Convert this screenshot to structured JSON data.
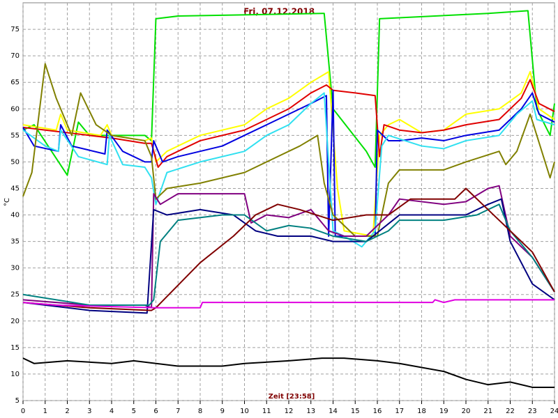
{
  "chart_data": {
    "type": "line",
    "title": "Fri, 07.12.2018",
    "x_label": "Zeit [23:58]",
    "y_label": "°C",
    "xlim": [
      0,
      24
    ],
    "xticks": [
      0,
      1,
      2,
      3,
      4,
      5,
      6,
      7,
      8,
      9,
      10,
      11,
      12,
      13,
      14,
      15,
      16,
      17,
      18,
      19,
      20,
      21,
      22,
      23,
      24
    ],
    "ylim": [
      5,
      80
    ],
    "yticks": [
      5,
      10,
      15,
      20,
      25,
      30,
      35,
      40,
      45,
      50,
      55,
      60,
      65,
      70,
      75
    ],
    "grid": true,
    "series": [
      {
        "color": "#00e000",
        "x": [
          0,
          0.5,
          2.0,
          2.5,
          3,
          5.5,
          5.8,
          6.0,
          7,
          13.5,
          13.6,
          14,
          15.5,
          15.9,
          16.1,
          21,
          22.8,
          23.2,
          23.8,
          24
        ],
        "values": [
          56,
          57,
          47.5,
          57.5,
          55,
          55,
          54,
          77,
          77.5,
          78,
          78,
          60,
          52,
          49,
          77,
          78,
          78.5,
          60,
          55,
          61
        ]
      },
      {
        "color": "#ffff00",
        "x": [
          0,
          1.5,
          1.7,
          2,
          3.5,
          3.8,
          4,
          5.5,
          5.8,
          6.0,
          6.5,
          8,
          10,
          11,
          12,
          13,
          13.8,
          14.2,
          14.5,
          15.8,
          16.1,
          16.5,
          17,
          18,
          19,
          20,
          21.5,
          22.5,
          22.9,
          23.3,
          24
        ],
        "values": [
          57,
          56,
          59,
          56,
          55,
          57,
          55,
          54,
          54.5,
          50,
          52,
          55,
          57,
          60,
          62,
          65,
          67,
          45,
          37,
          36,
          55,
          57,
          58,
          55.5,
          56,
          59,
          60,
          63,
          67,
          60,
          58
        ]
      },
      {
        "color": "#e00000",
        "x": [
          0,
          2,
          4,
          5.5,
          5.8,
          6.1,
          6.5,
          8,
          10,
          11,
          12,
          13,
          13.7,
          14,
          15,
          15.9,
          16.1,
          16.3,
          17,
          18,
          19,
          20,
          21.5,
          22.5,
          22.9,
          23.3,
          24
        ],
        "values": [
          56.5,
          55.5,
          54.5,
          53.5,
          53.5,
          49,
          51,
          54,
          56,
          58,
          60,
          63,
          64.5,
          63.5,
          63,
          62.5,
          51,
          57,
          56,
          55.5,
          56,
          57,
          58,
          62,
          65.5,
          61,
          59.5
        ]
      },
      {
        "color": "#0000e0",
        "x": [
          0,
          0.5,
          1.6,
          1.7,
          2.2,
          3.7,
          3.8,
          4.5,
          5.5,
          5.8,
          5.9,
          6.3,
          7,
          9,
          10,
          11,
          12,
          13,
          13.7,
          13.8,
          14.0,
          14.1,
          15.9,
          16.0,
          16.5,
          17,
          18,
          19,
          20,
          21.5,
          22.5,
          23,
          23.3,
          24
        ],
        "values": [
          56.5,
          53,
          52,
          57,
          53,
          51.5,
          56,
          52,
          50,
          50,
          54,
          50,
          51,
          53,
          55,
          57,
          59,
          61,
          62.5,
          36,
          63.5,
          36,
          36,
          56,
          54,
          54,
          54.5,
          54,
          55,
          56,
          60,
          63,
          59,
          57.5
        ]
      },
      {
        "color": "#30e0f0",
        "x": [
          0,
          1,
          1.6,
          1.7,
          2.5,
          3.8,
          3.9,
          4.5,
          5.5,
          5.8,
          6.0,
          6.5,
          8,
          10,
          11,
          12,
          13,
          13.6,
          14.0,
          14.5,
          15.3,
          15.9,
          16.2,
          16.5,
          18,
          19,
          20,
          21.5,
          22.3,
          23,
          23.2,
          24
        ],
        "values": [
          56,
          53,
          52,
          56,
          51,
          49.5,
          55,
          49.5,
          49,
          47,
          42,
          48,
          50,
          52,
          55,
          57,
          61,
          63,
          37,
          36,
          34,
          37,
          53,
          55,
          53,
          52.5,
          54,
          55,
          59,
          61.5,
          58,
          57
        ]
      },
      {
        "color": "#808000",
        "x": [
          0,
          0.4,
          1.0,
          1.5,
          2.2,
          2.6,
          3.3,
          4,
          5.5,
          5.8,
          6.0,
          6.5,
          8,
          10,
          11,
          12.5,
          13.3,
          13.6,
          14,
          15,
          16,
          16.5,
          17,
          19,
          20,
          21.5,
          21.8,
          22.3,
          22.9,
          23.2,
          23.8,
          24
        ],
        "values": [
          43.5,
          48,
          68.5,
          62,
          55,
          63,
          57,
          55,
          54,
          51,
          43,
          45,
          46,
          48,
          50,
          53,
          55,
          46,
          40,
          36,
          36,
          46,
          48.5,
          48.5,
          50,
          52,
          49.5,
          52,
          59,
          55,
          47,
          50
        ]
      },
      {
        "color": "#800080",
        "x": [
          0,
          3,
          5.5,
          5.8,
          5.9,
          6.2,
          7,
          10,
          10.3,
          11,
          12,
          13,
          13.8,
          14.5,
          15.5,
          16.5,
          17,
          19,
          20,
          21,
          21.5,
          22,
          23,
          24
        ],
        "values": [
          24,
          23,
          23,
          22.5,
          44,
          42,
          44,
          44,
          38.5,
          40,
          39.5,
          41,
          37,
          36,
          36,
          40,
          43,
          42,
          42.5,
          45,
          45.5,
          36,
          32,
          25.5
        ]
      },
      {
        "color": "#000080",
        "x": [
          0,
          3,
          5.6,
          5.9,
          6.5,
          8,
          9.5,
          10.5,
          11.5,
          13,
          14,
          15.5,
          17,
          19,
          20,
          21,
          21.6,
          22,
          23,
          24
        ],
        "values": [
          23.5,
          22,
          21.5,
          41,
          40,
          41,
          40,
          37,
          36,
          36,
          35,
          35,
          40,
          40,
          40,
          42,
          43,
          35,
          27,
          24
        ]
      },
      {
        "color": "#008080",
        "x": [
          0,
          3,
          5.7,
          5.9,
          6.2,
          7,
          9,
          10,
          11,
          12,
          13,
          14,
          15.5,
          16.5,
          17,
          19,
          20.5,
          21.5,
          22,
          23,
          24
        ],
        "values": [
          25,
          23,
          23,
          24,
          35,
          39,
          40,
          40,
          37,
          38,
          37.5,
          36,
          35,
          37,
          39,
          39,
          40,
          42,
          37,
          32,
          25.5
        ]
      },
      {
        "color": "#800000",
        "x": [
          0,
          3,
          5.8,
          6,
          8,
          9.5,
          10.5,
          11.5,
          12.5,
          14,
          15.5,
          16.5,
          17.5,
          19.5,
          20,
          21,
          22.5,
          23,
          24
        ],
        "values": [
          23.5,
          22.5,
          22,
          22.5,
          31,
          36,
          40,
          42,
          41,
          39,
          40,
          40,
          43,
          43,
          45,
          41,
          35,
          33,
          25.5
        ]
      },
      {
        "color": "#e000e0",
        "x": [
          0,
          1.5,
          6,
          8,
          8.1,
          18.5,
          18.6,
          19,
          19.5,
          24
        ],
        "values": [
          23.5,
          23,
          22.5,
          22.5,
          23.5,
          23.5,
          24,
          23.5,
          24,
          24
        ]
      },
      {
        "color": "#000000",
        "x": [
          0,
          0.5,
          2,
          4,
          5,
          7,
          9,
          10,
          12,
          13.5,
          14.5,
          16,
          17,
          19,
          20,
          21,
          22,
          23,
          24
        ],
        "values": [
          13,
          12,
          12.5,
          12,
          12.5,
          11.5,
          11.5,
          12,
          12.5,
          13,
          13,
          12.5,
          12,
          10.5,
          9,
          8,
          8.5,
          7.5,
          7.5
        ]
      }
    ]
  }
}
